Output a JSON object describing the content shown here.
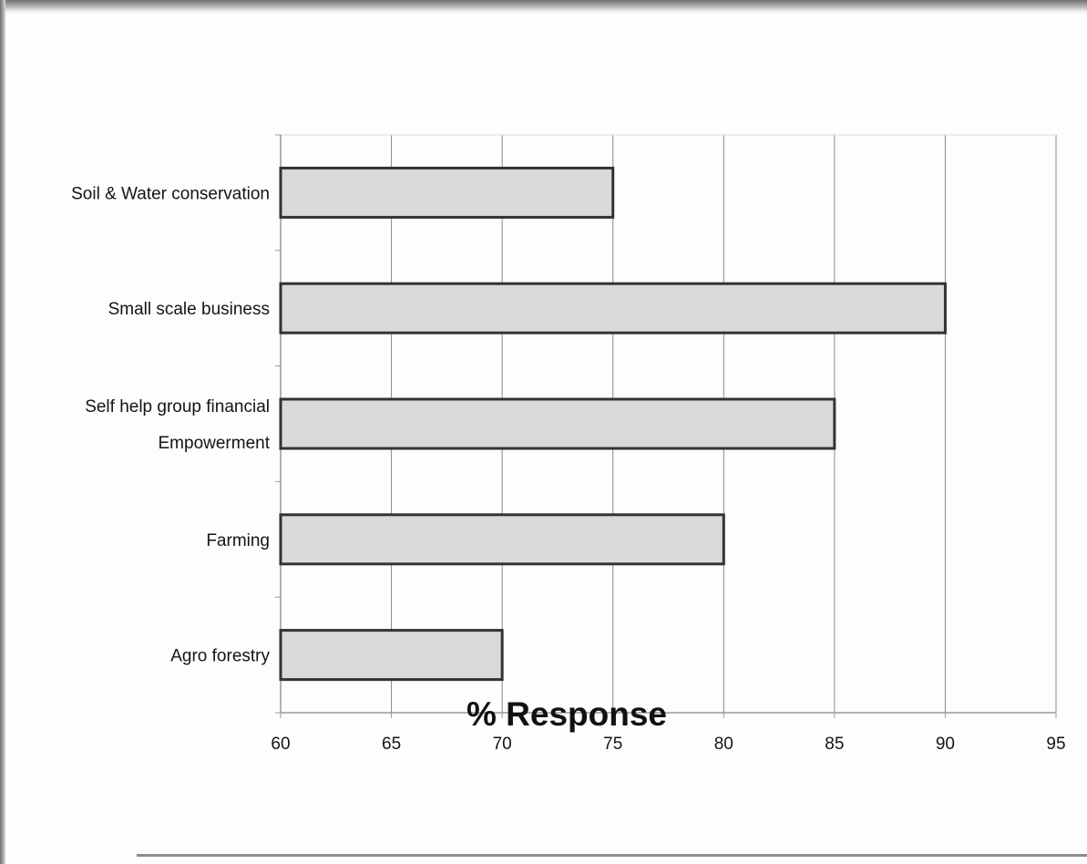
{
  "chart_data": {
    "type": "bar",
    "orientation": "horizontal",
    "categories": [
      [
        "Soil & Water conservation"
      ],
      [
        "Small scale business"
      ],
      [
        "Self help group financial",
        "Empowerment"
      ],
      [
        "Farming"
      ],
      [
        "Agro forestry"
      ]
    ],
    "values": [
      75,
      90,
      85,
      80,
      70
    ],
    "xlim": [
      60,
      95
    ],
    "xticks": [
      "60",
      "65",
      "70",
      "75",
      "80",
      "85",
      "90",
      "95"
    ],
    "xlabel": "% Response",
    "ylabel": "",
    "title": "",
    "grid": "vertical",
    "colors": {
      "bar_fill": "#d9d9d9",
      "bar_stroke": "#333333",
      "grid": "#8a8a8a",
      "axis": "#9a9a9a"
    }
  }
}
